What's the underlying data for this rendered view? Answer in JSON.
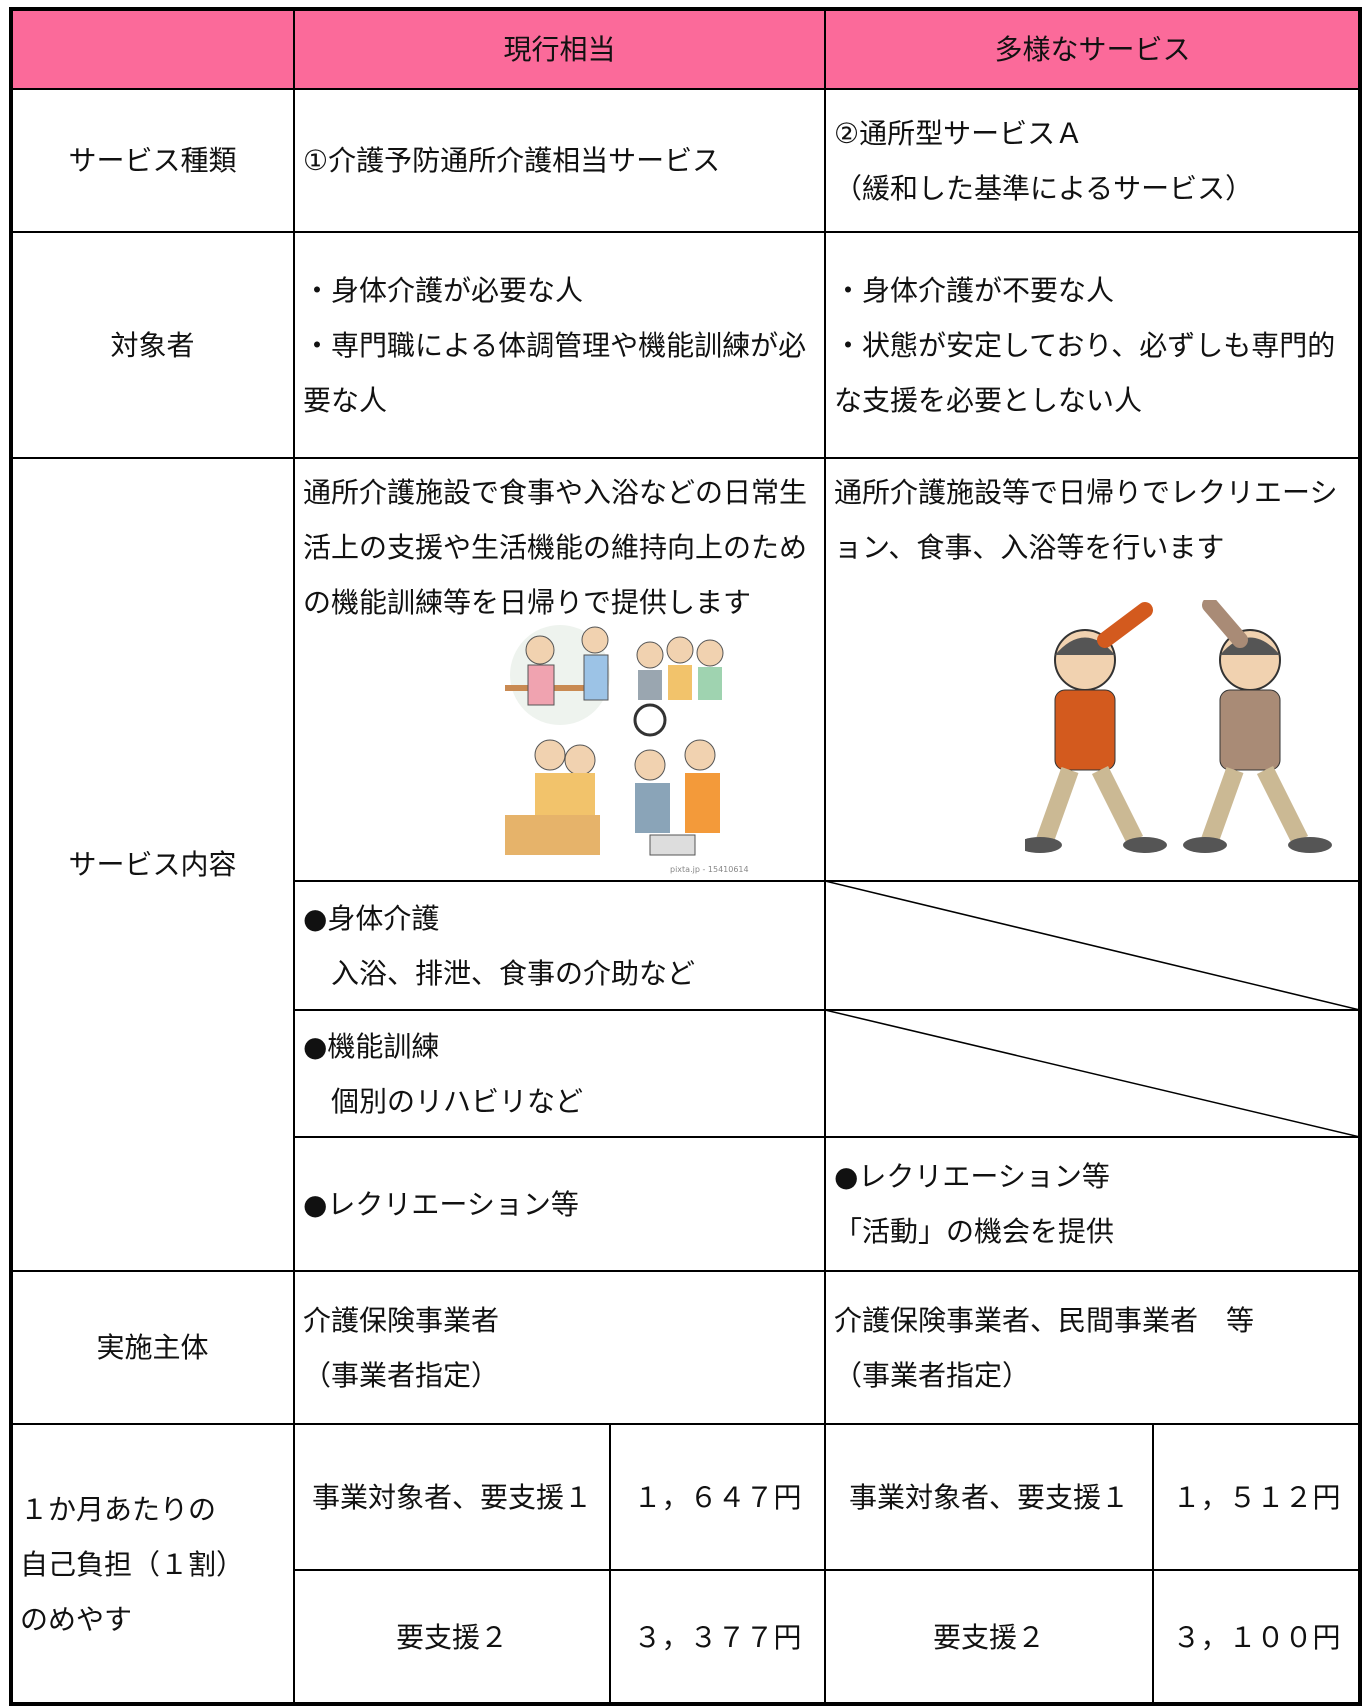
{
  "header": {
    "current": "現行相当",
    "diverse": "多様なサービス"
  },
  "rows": {
    "type": {
      "label": "サービス種類",
      "current": [
        "①介護予防通所介護相当サービス"
      ],
      "diverse": [
        "②通所型サービスＡ",
        "（緩和した基準によるサービス）"
      ]
    },
    "target": {
      "label": "対象者",
      "current": [
        "・身体介護が必要な人",
        "・専門職による体調管理や機能訓練が必要な人"
      ],
      "diverse": [
        "・身体介護が不要な人",
        "・状態が安定しており、必ずしも専門的な支援を必要としない人"
      ]
    },
    "content": {
      "label": "サービス内容",
      "summary": {
        "current": [
          "通所介護施設で食事や入浴などの日常生活上の支援や生活機能の維持向上のための機能訓練等を日帰りで提供します"
        ],
        "diverse": [
          "通所介護施設等で日帰りでレクリエーション、食事、入浴等を行います"
        ]
      },
      "care": {
        "current": [
          "●身体介護",
          "入浴、排泄、食事の介助など"
        ]
      },
      "training": {
        "current": [
          "●機能訓練",
          "個別のリハビリなど"
        ]
      },
      "recreation": {
        "current": [
          "●レクリエーション等"
        ],
        "diverse": [
          "●レクリエーション等",
          "「活動」の機会を提供"
        ]
      }
    },
    "provider": {
      "label": "実施主体",
      "current": [
        "介護保険事業者",
        "（事業者指定）"
      ],
      "diverse": [
        "介護保険事業者、民間事業者　等",
        "（事業者指定）"
      ]
    },
    "cost": {
      "label": [
        "１か月あたりの",
        "自己負担（１割）",
        "のめやす"
      ],
      "current": [
        [
          "事業対象者、要支援１",
          "１，６４７円"
        ],
        [
          "要支援２",
          "３，３７７円"
        ]
      ],
      "diverse": [
        [
          "事業対象者、要支援１",
          "１，５１２円"
        ],
        [
          "要支援２",
          "３，１００円"
        ]
      ]
    }
  },
  "content": {
    "image_caption": "pixta.jp - 15410614"
  }
}
